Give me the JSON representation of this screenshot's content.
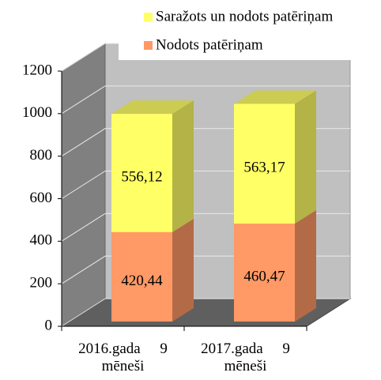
{
  "chart_data": {
    "type": "bar",
    "stacked": true,
    "three_d": true,
    "categories": [
      "2016.gada 9 mēneši",
      "2017.gada 9 mēneši"
    ],
    "series": [
      {
        "name": "Nodots patēriņam",
        "color": "#ff9966",
        "values": [
          420.44,
          460.47
        ],
        "value_labels": [
          "420,44",
          "460,47"
        ]
      },
      {
        "name": "Saražots un nodots patēriņam",
        "color": "#ffff66",
        "values": [
          556.12,
          563.17
        ],
        "value_labels": [
          "556,12",
          "563,17"
        ]
      }
    ],
    "ylim": [
      0,
      1200
    ],
    "yticks": [
      0,
      200,
      400,
      600,
      800,
      1000,
      1200
    ],
    "grid": true,
    "legend": "top-right"
  }
}
